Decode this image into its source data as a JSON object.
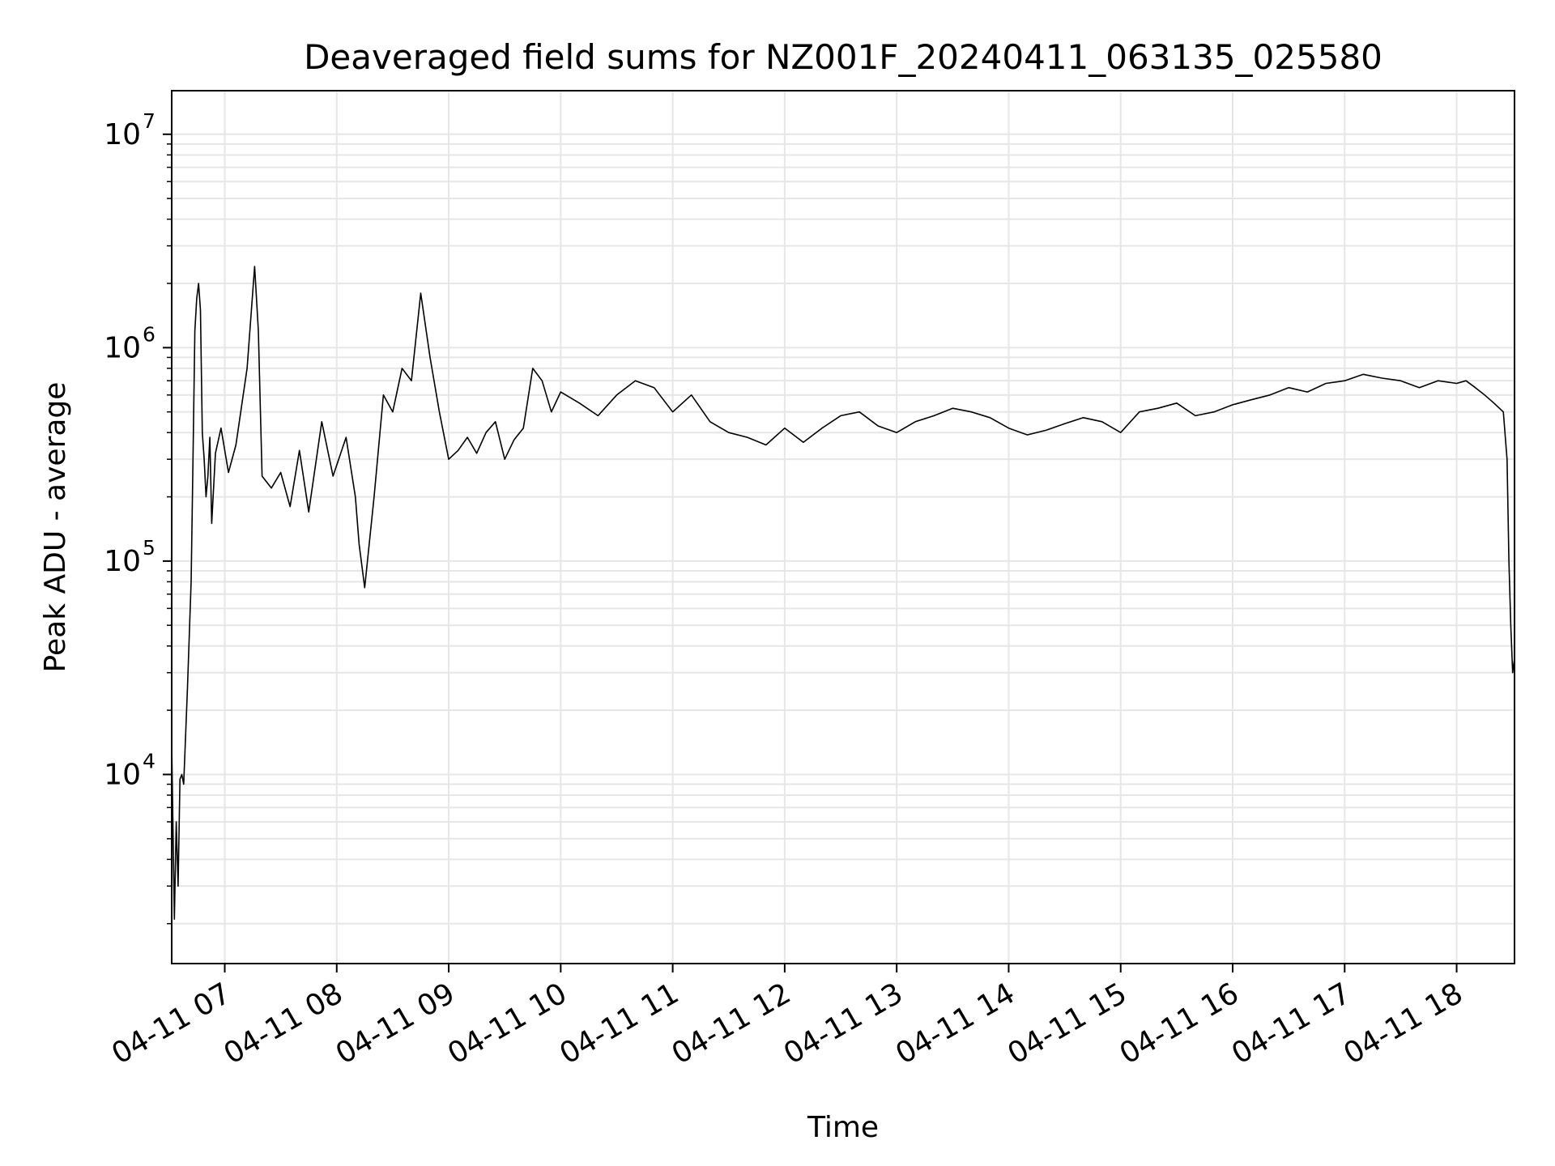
{
  "chart_data": {
    "type": "line",
    "title": "Deaveraged field sums for NZ001F_20240411_063135_025580",
    "xlabel": "Time",
    "ylabel": "Peak ADU - average",
    "yscale": "log",
    "ylim": [
      1300,
      16000000
    ],
    "xlim": [
      "2024-04-11 06:31:35",
      "2024-04-11 18:31:00"
    ],
    "grid": true,
    "line_color": "#000000",
    "grid_color": "#e6e6e6",
    "x_ticks": [
      {
        "t": "2024-04-11 07:00",
        "label": "04-11 07"
      },
      {
        "t": "2024-04-11 08:00",
        "label": "04-11 08"
      },
      {
        "t": "2024-04-11 09:00",
        "label": "04-11 09"
      },
      {
        "t": "2024-04-11 10:00",
        "label": "04-11 10"
      },
      {
        "t": "2024-04-11 11:00",
        "label": "04-11 11"
      },
      {
        "t": "2024-04-11 12:00",
        "label": "04-11 12"
      },
      {
        "t": "2024-04-11 13:00",
        "label": "04-11 13"
      },
      {
        "t": "2024-04-11 14:00",
        "label": "04-11 14"
      },
      {
        "t": "2024-04-11 15:00",
        "label": "04-11 15"
      },
      {
        "t": "2024-04-11 16:00",
        "label": "04-11 16"
      },
      {
        "t": "2024-04-11 17:00",
        "label": "04-11 17"
      },
      {
        "t": "2024-04-11 18:00",
        "label": "04-11 18"
      }
    ],
    "y_ticks": [
      {
        "value": 10000,
        "base": "10",
        "exp": "4"
      },
      {
        "value": 100000,
        "base": "10",
        "exp": "5"
      },
      {
        "value": 1000000,
        "base": "10",
        "exp": "6"
      },
      {
        "value": 10000000,
        "base": "10",
        "exp": "7"
      }
    ],
    "series": [
      {
        "x": [
          "2024-04-11 06:31:35",
          "2024-04-11 06:33:00",
          "2024-04-11 06:34:00",
          "2024-04-11 06:35:00",
          "2024-04-11 06:36:00",
          "2024-04-11 06:37:00",
          "2024-04-11 06:38:00",
          "2024-04-11 06:40:00",
          "2024-04-11 06:42:00",
          "2024-04-11 06:43:00",
          "2024-04-11 06:44:00",
          "2024-04-11 06:45:00",
          "2024-04-11 06:46:00",
          "2024-04-11 06:47:00",
          "2024-04-11 06:48:00",
          "2024-04-11 06:49:00",
          "2024-04-11 06:50:00",
          "2024-04-11 06:51:00",
          "2024-04-11 06:52:00",
          "2024-04-11 06:53:00",
          "2024-04-11 06:55:00",
          "2024-04-11 06:58:00",
          "2024-04-11 07:02:00",
          "2024-04-11 07:06:00",
          "2024-04-11 07:12:00",
          "2024-04-11 07:16:00",
          "2024-04-11 07:18:00",
          "2024-04-11 07:20:00",
          "2024-04-11 07:25:00",
          "2024-04-11 07:30:00",
          "2024-04-11 07:35:00",
          "2024-04-11 07:40:00",
          "2024-04-11 07:45:00",
          "2024-04-11 07:52:00",
          "2024-04-11 07:58:00",
          "2024-04-11 08:05:00",
          "2024-04-11 08:10:00",
          "2024-04-11 08:12:00",
          "2024-04-11 08:15:00",
          "2024-04-11 08:20:00",
          "2024-04-11 08:25:00",
          "2024-04-11 08:30:00",
          "2024-04-11 08:35:00",
          "2024-04-11 08:40:00",
          "2024-04-11 08:45:00",
          "2024-04-11 08:50:00",
          "2024-04-11 08:55:00",
          "2024-04-11 09:00:00",
          "2024-04-11 09:05:00",
          "2024-04-11 09:10:00",
          "2024-04-11 09:15:00",
          "2024-04-11 09:20:00",
          "2024-04-11 09:25:00",
          "2024-04-11 09:30:00",
          "2024-04-11 09:35:00",
          "2024-04-11 09:40:00",
          "2024-04-11 09:45:00",
          "2024-04-11 09:50:00",
          "2024-04-11 09:55:00",
          "2024-04-11 10:00:00",
          "2024-04-11 10:10:00",
          "2024-04-11 10:20:00",
          "2024-04-11 10:30:00",
          "2024-04-11 10:40:00",
          "2024-04-11 10:50:00",
          "2024-04-11 11:00:00",
          "2024-04-11 11:10:00",
          "2024-04-11 11:20:00",
          "2024-04-11 11:30:00",
          "2024-04-11 11:40:00",
          "2024-04-11 11:50:00",
          "2024-04-11 12:00:00",
          "2024-04-11 12:10:00",
          "2024-04-11 12:20:00",
          "2024-04-11 12:30:00",
          "2024-04-11 12:40:00",
          "2024-04-11 12:50:00",
          "2024-04-11 13:00:00",
          "2024-04-11 13:10:00",
          "2024-04-11 13:20:00",
          "2024-04-11 13:30:00",
          "2024-04-11 13:40:00",
          "2024-04-11 13:50:00",
          "2024-04-11 14:00:00",
          "2024-04-11 14:10:00",
          "2024-04-11 14:20:00",
          "2024-04-11 14:30:00",
          "2024-04-11 14:40:00",
          "2024-04-11 14:50:00",
          "2024-04-11 15:00:00",
          "2024-04-11 15:10:00",
          "2024-04-11 15:20:00",
          "2024-04-11 15:30:00",
          "2024-04-11 15:40:00",
          "2024-04-11 15:50:00",
          "2024-04-11 16:00:00",
          "2024-04-11 16:10:00",
          "2024-04-11 16:20:00",
          "2024-04-11 16:30:00",
          "2024-04-11 16:40:00",
          "2024-04-11 16:50:00",
          "2024-04-11 17:00:00",
          "2024-04-11 17:10:00",
          "2024-04-11 17:20:00",
          "2024-04-11 17:30:00",
          "2024-04-11 17:40:00",
          "2024-04-11 17:50:00",
          "2024-04-11 18:00:00",
          "2024-04-11 18:05:00",
          "2024-04-11 18:10:00",
          "2024-04-11 18:15:00",
          "2024-04-11 18:20:00",
          "2024-04-11 18:25:00",
          "2024-04-11 18:27:00",
          "2024-04-11 18:28:00",
          "2024-04-11 18:29:00",
          "2024-04-11 18:30:00",
          "2024-04-11 18:31:00"
        ],
        "y": [
          14000,
          2100,
          6000,
          3000,
          9500,
          10000,
          9000,
          25000,
          80000,
          300000,
          1200000,
          1700000,
          2000000,
          1500000,
          400000,
          300000,
          200000,
          250000,
          380000,
          150000,
          320000,
          420000,
          260000,
          350000,
          800000,
          2400000,
          1200000,
          250000,
          220000,
          260000,
          180000,
          330000,
          170000,
          450000,
          250000,
          380000,
          200000,
          120000,
          75000,
          200000,
          600000,
          500000,
          800000,
          700000,
          1800000,
          900000,
          500000,
          300000,
          330000,
          380000,
          320000,
          400000,
          450000,
          300000,
          370000,
          420000,
          800000,
          700000,
          500000,
          620000,
          550000,
          480000,
          600000,
          700000,
          650000,
          500000,
          600000,
          450000,
          400000,
          380000,
          350000,
          420000,
          360000,
          420000,
          480000,
          500000,
          430000,
          400000,
          450000,
          480000,
          520000,
          500000,
          470000,
          420000,
          390000,
          410000,
          440000,
          470000,
          450000,
          400000,
          500000,
          520000,
          550000,
          480000,
          500000,
          540000,
          570000,
          600000,
          650000,
          620000,
          680000,
          700000,
          750000,
          720000,
          700000,
          650000,
          700000,
          680000,
          700000,
          650000,
          600000,
          550000,
          500000,
          300000,
          100000,
          50000,
          30000,
          35000
        ]
      }
    ]
  }
}
